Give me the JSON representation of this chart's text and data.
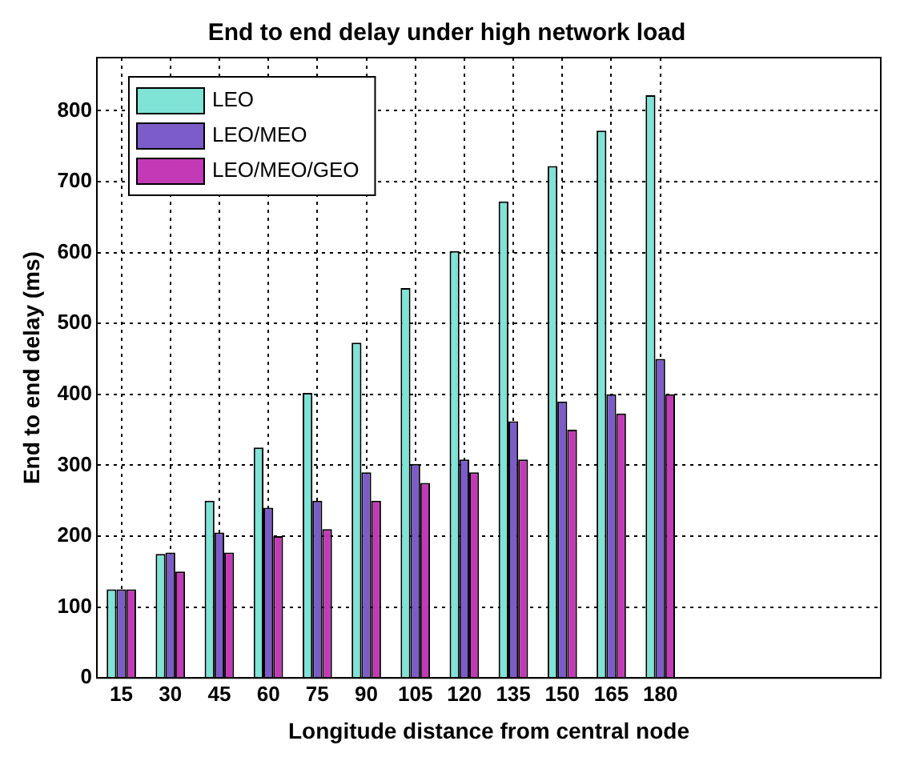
{
  "chart_data": {
    "type": "bar",
    "title": "End to end delay under high network load",
    "xlabel": "Longitude distance from central node",
    "ylabel": "End to end delay (ms)",
    "categories": [
      "15",
      "30",
      "45",
      "60",
      "75",
      "90",
      "105",
      "120",
      "135",
      "150",
      "165",
      "180",
      null,
      null,
      null,
      null
    ],
    "series": [
      {
        "name": "LEO",
        "color": "#7fe3d6",
        "values": [
          125,
          175,
          250,
          325,
          402,
          473,
          550,
          602,
          672,
          722,
          772,
          822,
          null,
          null,
          null,
          null
        ]
      },
      {
        "name": "LEO/MEO",
        "color": "#7b5cc8",
        "values": [
          125,
          177,
          205,
          240,
          250,
          290,
          302,
          308,
          362,
          390,
          400,
          450,
          null,
          null,
          null,
          null
        ]
      },
      {
        "name": "LEO/MEO/GEO",
        "color": "#c23ab5",
        "values": [
          125,
          150,
          177,
          200,
          210,
          250,
          275,
          290,
          308,
          350,
          373,
          400,
          null,
          null,
          null,
          null
        ]
      }
    ],
    "ylim": [
      0,
      875
    ],
    "yticks": [
      0,
      100,
      200,
      300,
      400,
      500,
      600,
      700,
      800
    ],
    "grid": true,
    "legend": "top left"
  }
}
